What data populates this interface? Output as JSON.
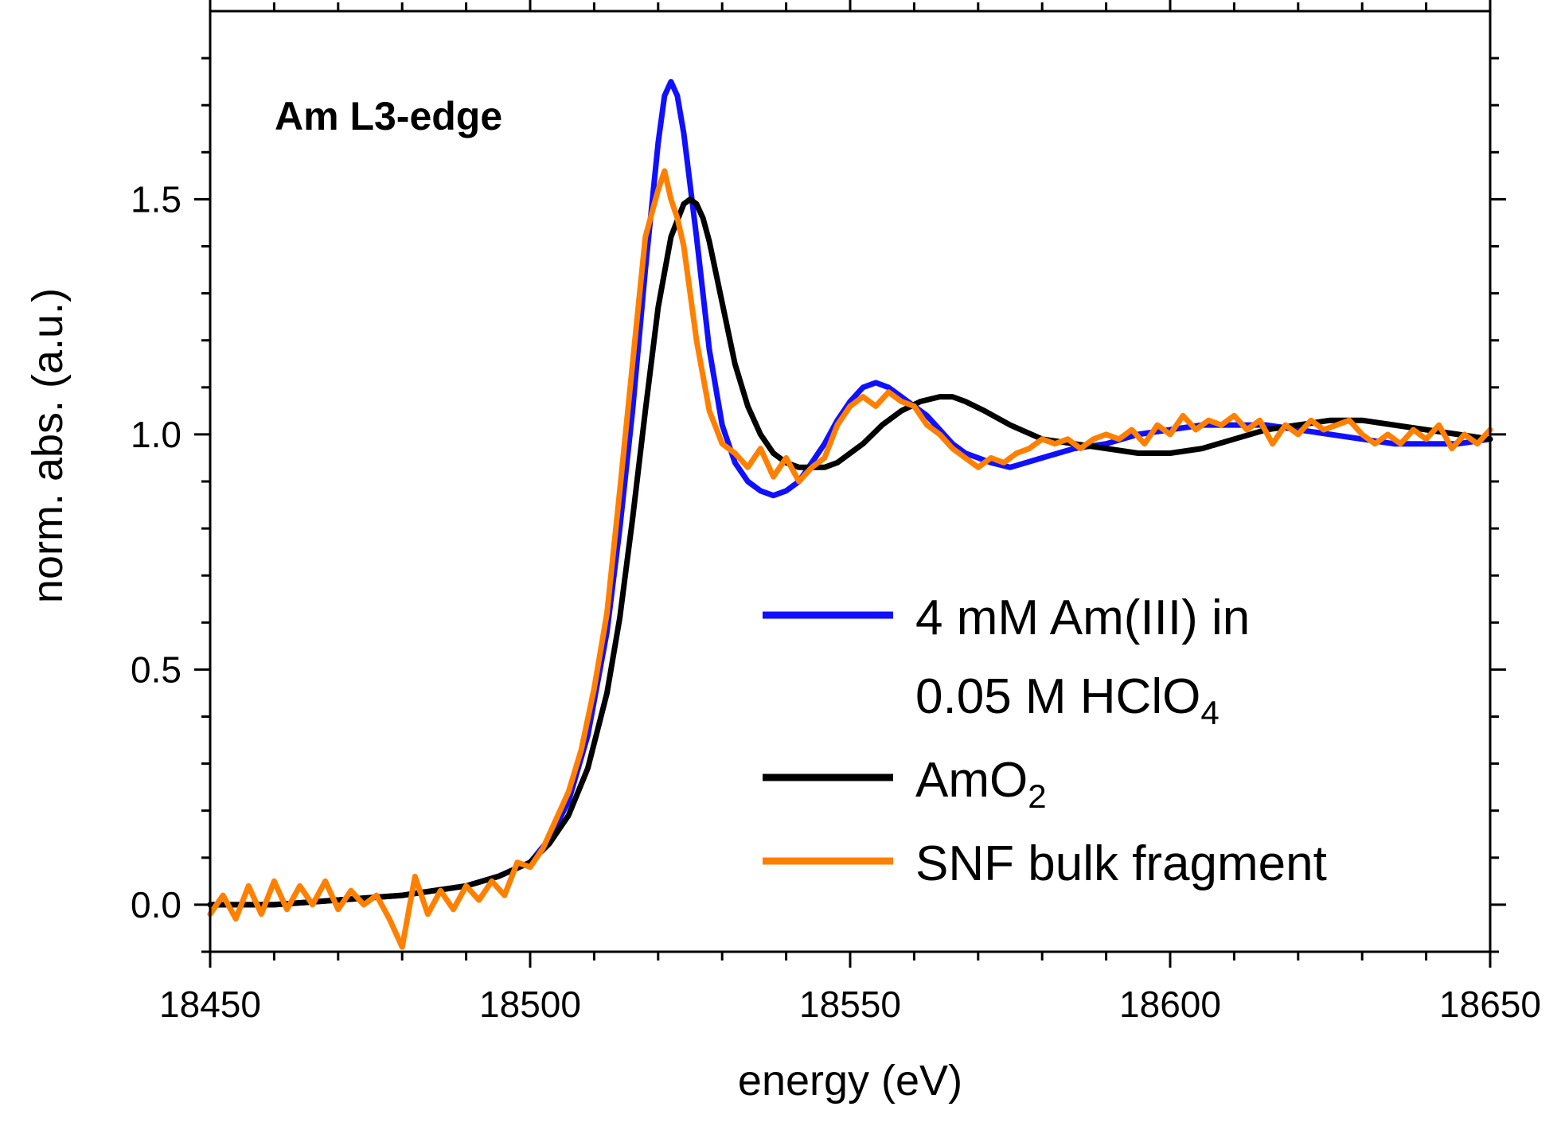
{
  "chart_data": {
    "type": "line",
    "annotation": "Am L3-edge",
    "xlabel": "energy (eV)",
    "ylabel": "norm. abs. (a.u.)",
    "xlim": [
      18450,
      18650
    ],
    "ylim": [
      -0.1,
      1.9
    ],
    "xticks": [
      18450,
      18500,
      18550,
      18600,
      18650
    ],
    "xtick_labels": [
      "18450",
      "18500",
      "18550",
      "18600",
      "18650"
    ],
    "yticks": [
      0.0,
      0.5,
      1.0,
      1.5
    ],
    "ytick_labels": [
      "0.0",
      "0.5",
      "1.0",
      "1.5"
    ],
    "grid": false,
    "legend_position": "right-center",
    "legend": [
      {
        "series_index": 0,
        "line1": "4 mM Am(III) in",
        "line2_main": "0.05 M HClO",
        "line2_sub": "4"
      },
      {
        "series_index": 1,
        "line1_main": "AmO",
        "line1_sub": "2"
      },
      {
        "series_index": 2,
        "line1": "SNF bulk fragment"
      }
    ],
    "series": [
      {
        "name": "4 mM Am(III) in 0.05 M HClO4",
        "color": "#1010ff",
        "x": [
          18450,
          18460,
          18470,
          18480,
          18490,
          18495,
          18500,
          18503,
          18506,
          18509,
          18512,
          18514,
          18516,
          18518,
          18520,
          18521,
          18522,
          18523,
          18524,
          18526,
          18528,
          18530,
          18532,
          18534,
          18536,
          18538,
          18540,
          18542,
          18544,
          18546,
          18548,
          18550,
          18552,
          18554,
          18556,
          18558,
          18560,
          18562,
          18564,
          18566,
          18568,
          18570,
          18572,
          18575,
          18580,
          18585,
          18590,
          18595,
          18600,
          18605,
          18610,
          18615,
          18620,
          18625,
          18630,
          18635,
          18640,
          18645,
          18650
        ],
        "y": [
          0.0,
          0.0,
          0.01,
          0.02,
          0.04,
          0.06,
          0.09,
          0.14,
          0.22,
          0.36,
          0.58,
          0.8,
          1.05,
          1.35,
          1.62,
          1.72,
          1.75,
          1.72,
          1.64,
          1.42,
          1.18,
          1.02,
          0.94,
          0.9,
          0.88,
          0.87,
          0.88,
          0.9,
          0.94,
          0.98,
          1.03,
          1.07,
          1.1,
          1.11,
          1.1,
          1.08,
          1.06,
          1.04,
          1.01,
          0.98,
          0.96,
          0.95,
          0.94,
          0.93,
          0.95,
          0.97,
          0.98,
          1.0,
          1.01,
          1.02,
          1.02,
          1.02,
          1.01,
          1.0,
          0.99,
          0.98,
          0.98,
          0.98,
          0.99
        ]
      },
      {
        "name": "AmO2",
        "color": "#000000",
        "x": [
          18450,
          18460,
          18470,
          18480,
          18490,
          18495,
          18500,
          18503,
          18506,
          18509,
          18512,
          18514,
          18516,
          18518,
          18520,
          18522,
          18524,
          18525,
          18526,
          18527,
          18528,
          18530,
          18532,
          18534,
          18536,
          18538,
          18540,
          18542,
          18544,
          18546,
          18548,
          18550,
          18552,
          18555,
          18558,
          18561,
          18564,
          18566,
          18568,
          18571,
          18575,
          18580,
          18585,
          18590,
          18595,
          18600,
          18605,
          18610,
          18615,
          18620,
          18625,
          18630,
          18635,
          18640,
          18645,
          18650
        ],
        "y": [
          0.0,
          0.0,
          0.01,
          0.02,
          0.04,
          0.06,
          0.09,
          0.13,
          0.19,
          0.29,
          0.45,
          0.61,
          0.82,
          1.05,
          1.27,
          1.42,
          1.49,
          1.5,
          1.49,
          1.46,
          1.41,
          1.28,
          1.15,
          1.06,
          1.0,
          0.96,
          0.94,
          0.93,
          0.93,
          0.93,
          0.94,
          0.96,
          0.98,
          1.02,
          1.05,
          1.07,
          1.08,
          1.08,
          1.07,
          1.05,
          1.02,
          0.99,
          0.98,
          0.97,
          0.96,
          0.96,
          0.97,
          0.99,
          1.01,
          1.02,
          1.03,
          1.03,
          1.02,
          1.01,
          1.0,
          0.99
        ]
      },
      {
        "name": "SNF bulk fragment",
        "color": "#ff8000",
        "x": [
          18450,
          18452,
          18454,
          18456,
          18458,
          18460,
          18462,
          18464,
          18466,
          18468,
          18470,
          18472,
          18474,
          18476,
          18478,
          18480,
          18482,
          18484,
          18486,
          18488,
          18490,
          18492,
          18494,
          18496,
          18498,
          18500,
          18502,
          18504,
          18506,
          18508,
          18510,
          18512,
          18514,
          18516,
          18518,
          18520,
          18521,
          18522,
          18523,
          18524,
          18526,
          18528,
          18530,
          18532,
          18534,
          18536,
          18538,
          18540,
          18542,
          18544,
          18546,
          18548,
          18550,
          18552,
          18554,
          18556,
          18558,
          18560,
          18562,
          18564,
          18566,
          18568,
          18570,
          18572,
          18574,
          18576,
          18578,
          18580,
          18582,
          18584,
          18586,
          18588,
          18590,
          18592,
          18594,
          18596,
          18598,
          18600,
          18602,
          18604,
          18606,
          18608,
          18610,
          18612,
          18614,
          18616,
          18618,
          18620,
          18622,
          18624,
          18626,
          18628,
          18630,
          18632,
          18634,
          18636,
          18638,
          18640,
          18642,
          18644,
          18646,
          18648,
          18650
        ],
        "y": [
          -0.02,
          0.02,
          -0.03,
          0.04,
          -0.02,
          0.05,
          -0.01,
          0.04,
          0.0,
          0.05,
          -0.01,
          0.03,
          0.0,
          0.02,
          -0.03,
          -0.09,
          0.06,
          -0.02,
          0.03,
          -0.01,
          0.04,
          0.01,
          0.05,
          0.02,
          0.09,
          0.08,
          0.12,
          0.18,
          0.24,
          0.33,
          0.46,
          0.62,
          0.88,
          1.15,
          1.42,
          1.52,
          1.56,
          1.5,
          1.46,
          1.4,
          1.2,
          1.05,
          0.98,
          0.96,
          0.93,
          0.97,
          0.91,
          0.95,
          0.9,
          0.93,
          0.95,
          1.02,
          1.06,
          1.08,
          1.06,
          1.09,
          1.07,
          1.06,
          1.02,
          1.0,
          0.97,
          0.95,
          0.93,
          0.95,
          0.94,
          0.96,
          0.97,
          0.99,
          0.98,
          0.99,
          0.97,
          0.99,
          1.0,
          0.99,
          1.01,
          0.98,
          1.02,
          1.0,
          1.04,
          1.01,
          1.03,
          1.02,
          1.04,
          1.01,
          1.03,
          0.98,
          1.02,
          1.0,
          1.03,
          1.01,
          1.02,
          1.03,
          1.0,
          0.98,
          1.0,
          0.98,
          1.01,
          0.99,
          1.02,
          0.97,
          1.0,
          0.98,
          1.01
        ]
      }
    ]
  }
}
